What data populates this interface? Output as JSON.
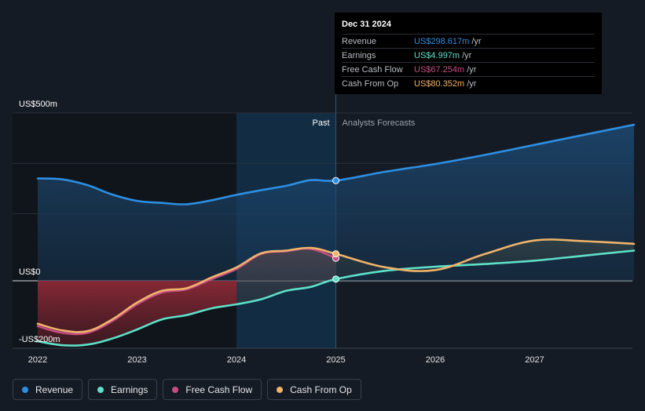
{
  "colors": {
    "revenue": "#2d8fe3",
    "earnings": "#5ee0c8",
    "free_cash_flow": "#c64d84",
    "cash_from_op": "#f0b36a",
    "background": "#151b24",
    "past_region": "#10151b",
    "highlight_band": "#12304a"
  },
  "tooltip": {
    "date": "Dec 31 2024",
    "rows": [
      {
        "label": "Revenue",
        "value": "US$298.617m",
        "unit": "/yr",
        "color": "#2d8fe3"
      },
      {
        "label": "Earnings",
        "value": "US$4.997m",
        "unit": "/yr",
        "color": "#5ee0c8"
      },
      {
        "label": "Free Cash Flow",
        "value": "US$67.254m",
        "unit": "/yr",
        "color": "#c64d84"
      },
      {
        "label": "Cash From Op",
        "value": "US$80.352m",
        "unit": "/yr",
        "color": "#f0b36a"
      }
    ]
  },
  "legend": [
    {
      "label": "Revenue",
      "color": "#2d8fe3"
    },
    {
      "label": "Earnings",
      "color": "#5ee0c8"
    },
    {
      "label": "Free Cash Flow",
      "color": "#c64d84"
    },
    {
      "label": "Cash From Op",
      "color": "#f0b36a"
    }
  ],
  "chart_data": {
    "type": "line",
    "title": "",
    "xlabel": "",
    "ylabel": "",
    "y_label_top": "US$500m",
    "y_label_zero": "US$0",
    "y_label_bottom": "-US$200m",
    "ylim": [
      -200,
      500
    ],
    "xlim": [
      2022,
      2028
    ],
    "x_ticks": [
      "2022",
      "2023",
      "2024",
      "2025",
      "2026",
      "2027"
    ],
    "past_label": "Past",
    "forecast_label": "Analysts Forecasts",
    "divider_x": 2025.0,
    "highlight_start_x": 2024.0,
    "grid": true,
    "legend_position": "bottom-left",
    "series": [
      {
        "name": "Revenue",
        "x": [
          2022.0,
          2022.25,
          2022.5,
          2022.75,
          2023.0,
          2023.25,
          2023.5,
          2023.75,
          2024.0,
          2024.25,
          2024.5,
          2024.75,
          2025.0,
          2025.5,
          2026.0,
          2026.5,
          2027.0,
          2027.5,
          2028.0
        ],
        "y": [
          305,
          302,
          285,
          257,
          238,
          232,
          228,
          240,
          256,
          270,
          283,
          300,
          298.617,
          325,
          348,
          375,
          405,
          435,
          465
        ]
      },
      {
        "name": "Earnings",
        "x": [
          2022.0,
          2022.25,
          2022.5,
          2022.75,
          2023.0,
          2023.25,
          2023.5,
          2023.75,
          2024.0,
          2024.25,
          2024.5,
          2024.75,
          2025.0,
          2025.5,
          2026.0,
          2026.5,
          2027.0,
          2027.5,
          2028.0
        ],
        "y": [
          -180,
          -192,
          -190,
          -172,
          -145,
          -115,
          -102,
          -82,
          -70,
          -55,
          -30,
          -18,
          4.997,
          30,
          42,
          50,
          60,
          75,
          90
        ]
      },
      {
        "name": "Free Cash Flow",
        "x": [
          2022.0,
          2022.25,
          2022.5,
          2022.75,
          2023.0,
          2023.25,
          2023.5,
          2023.75,
          2024.0,
          2024.25,
          2024.5,
          2024.75,
          2025.0
        ],
        "y": [
          -135,
          -155,
          -155,
          -120,
          -70,
          -35,
          -25,
          5,
          35,
          80,
          88,
          95,
          67.254
        ]
      },
      {
        "name": "Cash From Op",
        "x": [
          2022.0,
          2022.25,
          2022.5,
          2022.75,
          2023.0,
          2023.25,
          2023.5,
          2023.75,
          2024.0,
          2024.25,
          2024.5,
          2024.75,
          2025.0,
          2025.5,
          2026.0,
          2026.5,
          2027.0,
          2027.5,
          2028.0
        ],
        "y": [
          -128,
          -148,
          -150,
          -115,
          -65,
          -30,
          -22,
          10,
          40,
          82,
          90,
          98,
          80.352,
          40,
          32,
          80,
          120,
          118,
          110
        ]
      }
    ]
  }
}
